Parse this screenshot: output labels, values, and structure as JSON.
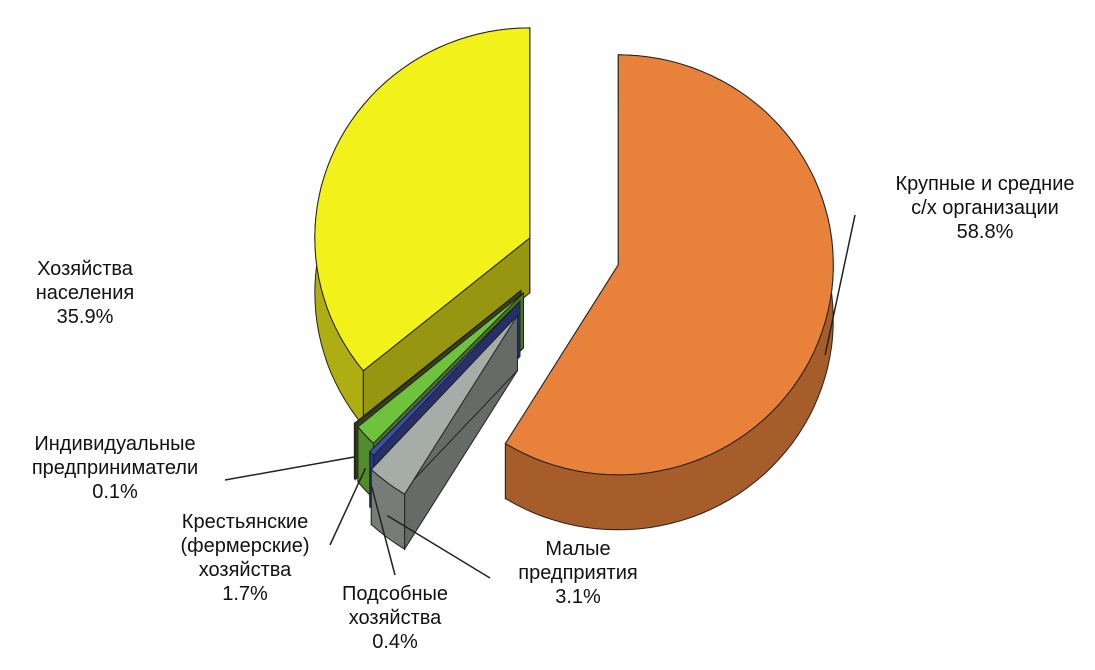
{
  "chart_data": {
    "type": "pie3d",
    "categories": [
      "Крупные и средние\nс/х организации",
      "Малые\nпредприятия",
      "Подсобные\nхозяйства",
      "Крестьянские\n(фермерские)\nхозяйства",
      "Индивидуальные\nпредприниматели",
      "Хозяйства\nнаселения"
    ],
    "values": [
      58.8,
      3.1,
      0.4,
      1.7,
      0.1,
      35.9
    ],
    "value_labels": [
      "58.8%",
      "3.1%",
      "0.4%",
      "1.7%",
      "0.1%",
      "35.9%"
    ],
    "colors": [
      "#e8813a",
      "#a6aca8",
      "#3d4fae",
      "#6fc23c",
      "#5a6a2a",
      "#f2f21a"
    ]
  }
}
